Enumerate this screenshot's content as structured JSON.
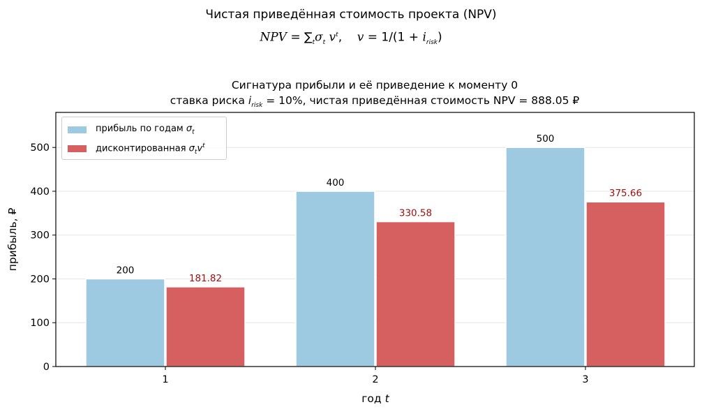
{
  "figure": {
    "suptitle": "Чистая приведённая стоимость проекта (NPV)",
    "formula": {
      "lhs": "NPV",
      "eq1": " = ∑",
      "sum_index": "t",
      "term_sigma": "σ",
      "term_sigma_sub": "t",
      "term_v": " v",
      "term_v_sup": "t",
      "sep": ",    ",
      "v": "v",
      "eq2": " = 1/(1 + ",
      "i": "i",
      "i_sub": "risk",
      "close": ")"
    }
  },
  "chart_data": {
    "type": "bar",
    "title_line1": "Сигнатура прибыли и её приведение к моменту 0",
    "title_line2_prefix": "ставка риска ",
    "title_i": "i",
    "title_i_sub": "risk",
    "title_line2_suffix": " = 10%,  чистая приведённая стоимость NPV  = 888.05 ₽",
    "xlabel": "год",
    "xlabel_var": "t",
    "ylabel": "прибыль, ₽",
    "categories": [
      "1",
      "2",
      "3"
    ],
    "x_tick_labels": [
      "1",
      "2",
      "3"
    ],
    "y_ticks": [
      0,
      100,
      200,
      300,
      400,
      500
    ],
    "y_tick_labels": [
      "0",
      "100",
      "200",
      "300",
      "400",
      "500"
    ],
    "ylim": [
      0,
      580
    ],
    "grid": "horizontal",
    "legend_position": "top-left",
    "series": [
      {
        "name": "прибыль по годам σt",
        "legend_text": "прибыль по годам ",
        "legend_sym": "σ",
        "legend_sub": "t",
        "legend_sup": "",
        "values": [
          200,
          400,
          500
        ],
        "labels": [
          "200",
          "400",
          "500"
        ],
        "color": "#9ecae1",
        "label_color": "#000000"
      },
      {
        "name": "дисконтированная σt v^t",
        "legend_text": "дисконтированная ",
        "legend_sym": "σ",
        "legend_sub": "t",
        "legend_sup": "t",
        "values": [
          181.82,
          330.58,
          375.66
        ],
        "labels": [
          "181.82",
          "330.58",
          "375.66"
        ],
        "color": "#d66060",
        "label_color": "#a01010"
      }
    ]
  }
}
